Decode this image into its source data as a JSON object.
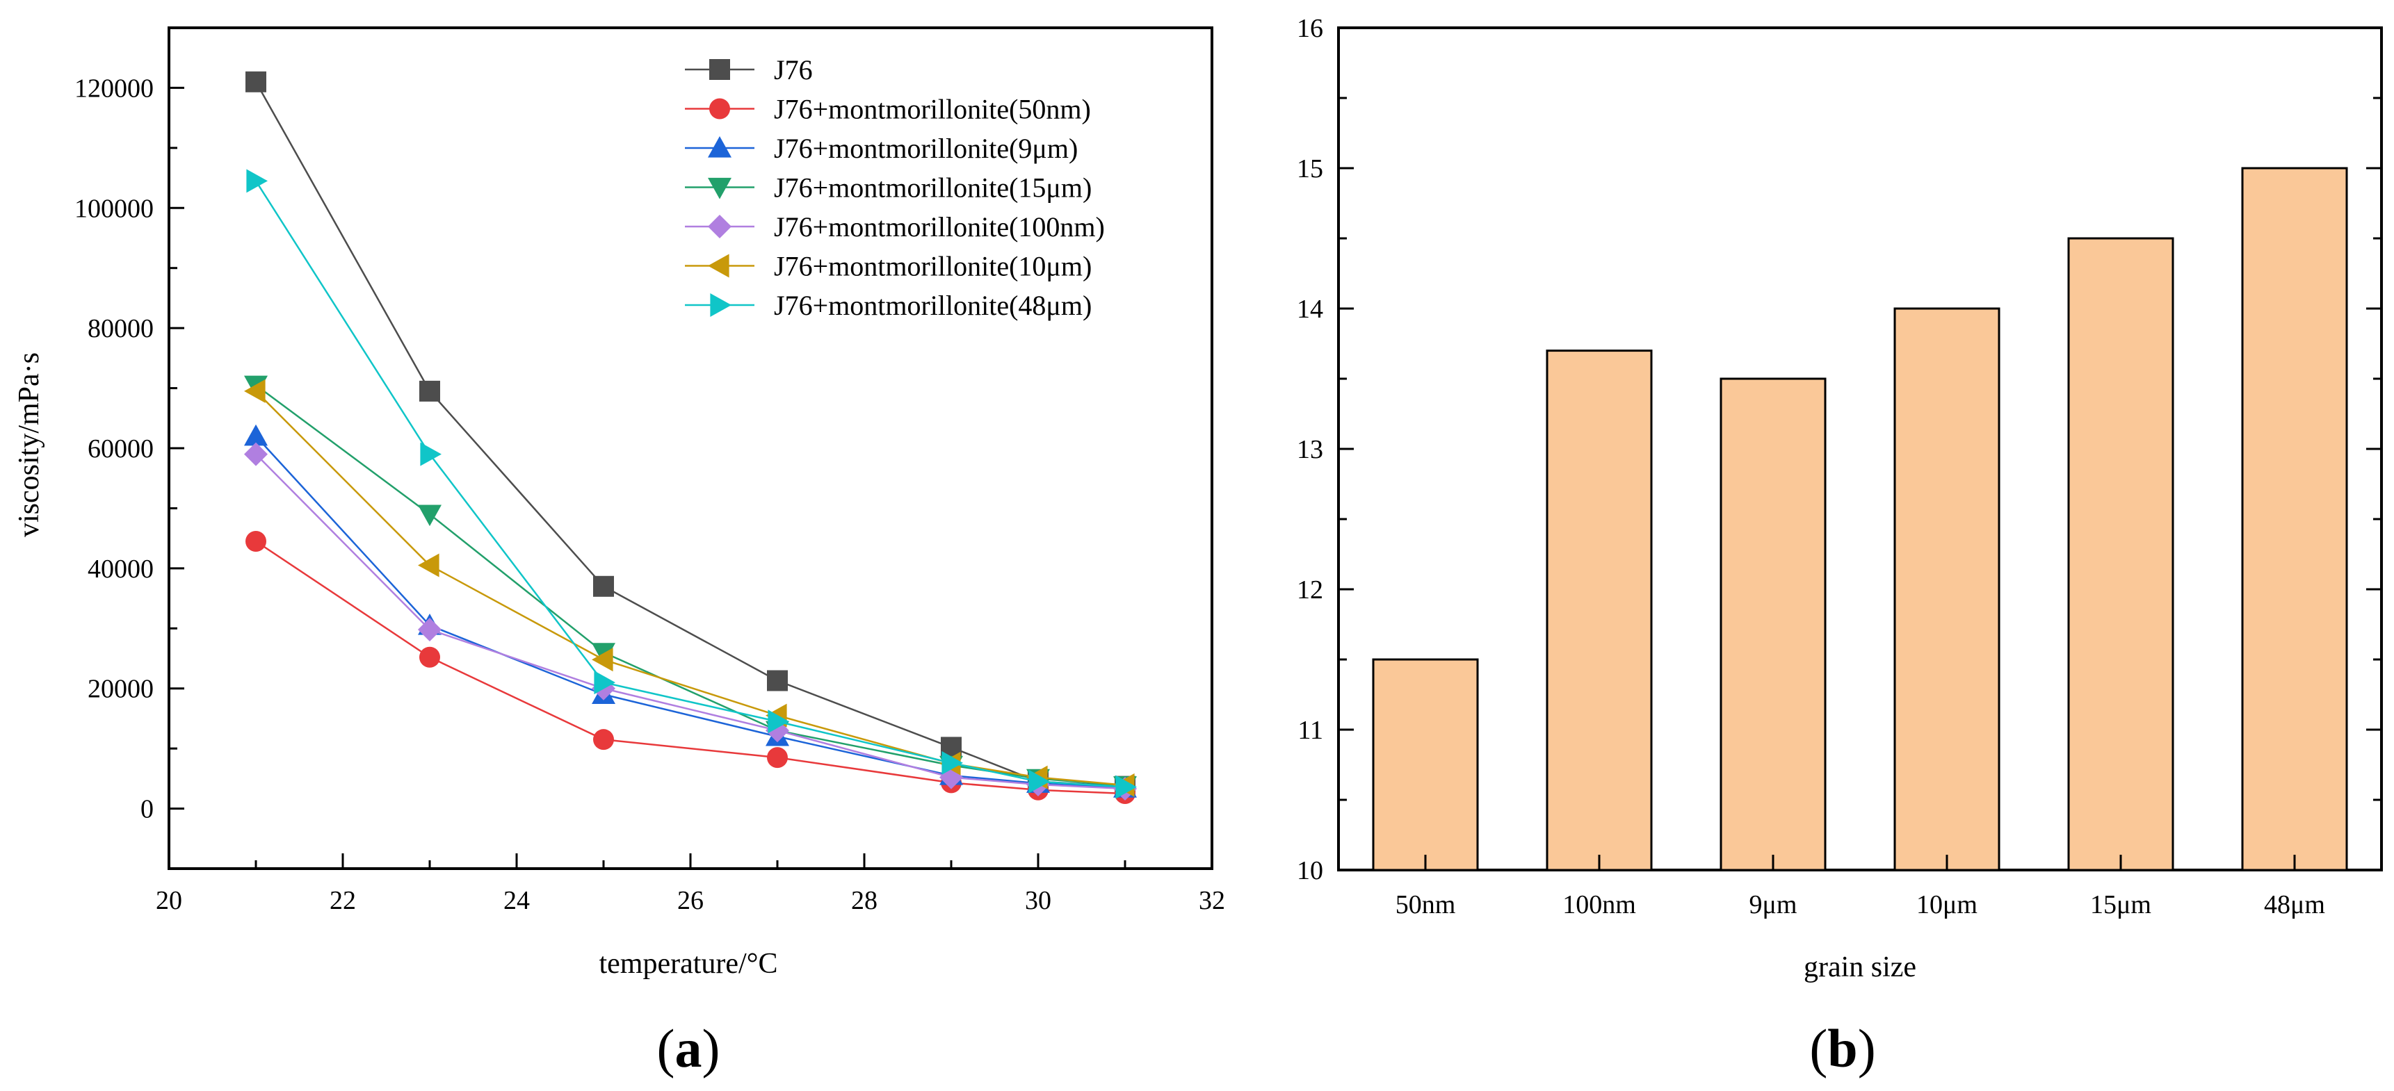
{
  "chart_data": [
    {
      "type": "line",
      "panel_label": {
        "open": "(",
        "letter": "a",
        "close": ")"
      },
      "xlabel": "temperature/°C",
      "ylabel": "viscosity/mPa·s",
      "xlim": [
        20,
        32
      ],
      "ylim": [
        -10000,
        130000
      ],
      "xticks": [
        20,
        22,
        24,
        26,
        28,
        30,
        32
      ],
      "yticks": [
        0,
        20000,
        40000,
        60000,
        80000,
        100000,
        120000
      ],
      "legend_position": "top-right",
      "x": [
        21,
        23,
        25,
        27,
        29,
        30,
        31
      ],
      "series": [
        {
          "name": "J76",
          "color": "#4d4d4d",
          "marker": "square",
          "values": [
            121000,
            69500,
            37000,
            21300,
            10200,
            4500,
            3700
          ]
        },
        {
          "name": "J76+montmorillonite(50nm)",
          "color": "#e8393b",
          "marker": "circle",
          "values": [
            44500,
            25200,
            11500,
            8500,
            4300,
            3100,
            2500
          ]
        },
        {
          "name": "J76+montmorillonite(9μm)",
          "color": "#1c64d8",
          "marker": "triangle-up",
          "values": [
            62000,
            30500,
            19000,
            12000,
            5500,
            4200,
            3400
          ]
        },
        {
          "name": "J76+montmorillonite(15μm)",
          "color": "#22a06b",
          "marker": "triangle-down",
          "values": [
            70500,
            49000,
            26000,
            13000,
            7200,
            5000,
            3800
          ]
        },
        {
          "name": "J76+montmorillonite(100nm)",
          "color": "#b07fe0",
          "marker": "diamond",
          "values": [
            59000,
            29800,
            20000,
            13000,
            5200,
            4000,
            3300
          ]
        },
        {
          "name": "J76+montmorillonite(10μm)",
          "color": "#c8990a",
          "marker": "triangle-left",
          "values": [
            69500,
            40500,
            24800,
            15500,
            7500,
            5200,
            3900
          ]
        },
        {
          "name": "J76+montmorillonite(48μm)",
          "color": "#10c5c8",
          "marker": "triangle-right",
          "values": [
            104500,
            59000,
            21000,
            14500,
            7600,
            4500,
            3600
          ]
        }
      ]
    },
    {
      "type": "bar",
      "panel_label": {
        "open": "(",
        "letter": "b",
        "close": ")"
      },
      "xlabel": "grain size",
      "ylabel": "",
      "ylim": [
        10,
        16
      ],
      "yticks": [
        10,
        11,
        12,
        13,
        14,
        15,
        16
      ],
      "categories": [
        "50nm",
        "100nm",
        "9μm",
        "10μm",
        "15μm",
        "48μm"
      ],
      "values": [
        11.5,
        13.7,
        13.5,
        14.0,
        14.5,
        15.0
      ],
      "bar_color": "#fac898"
    }
  ]
}
